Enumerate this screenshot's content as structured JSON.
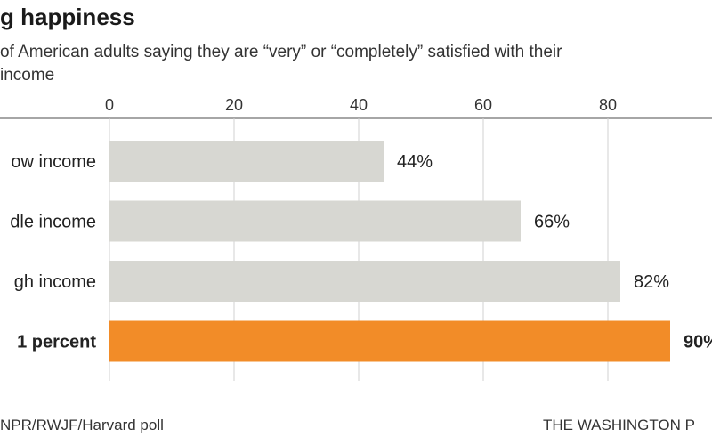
{
  "title": "g happiness",
  "subtitle_lines": [
    "of American adults saying they are “very” or “completely” satisfied with their",
    "income"
  ],
  "source": "NPR/RWJF/Harvard poll",
  "credit": "THE WASHINGTON P",
  "colors": {
    "bar_default": "#d7d7d2",
    "bar_highlight": "#f28c28",
    "axis": "#888888",
    "grid": "#d0d0d0"
  },
  "chart_data": {
    "type": "bar",
    "orientation": "horizontal",
    "categories": [
      "ow income",
      "dle income",
      "gh income",
      "1 percent"
    ],
    "values": [
      44,
      66,
      82,
      90
    ],
    "value_labels": [
      "44%",
      "66%",
      "82%",
      "90%"
    ],
    "highlight_index": 3,
    "xlim": [
      0,
      100
    ],
    "xticks": [
      0,
      20,
      40,
      60,
      80
    ],
    "grid": true,
    "legend": "none"
  }
}
